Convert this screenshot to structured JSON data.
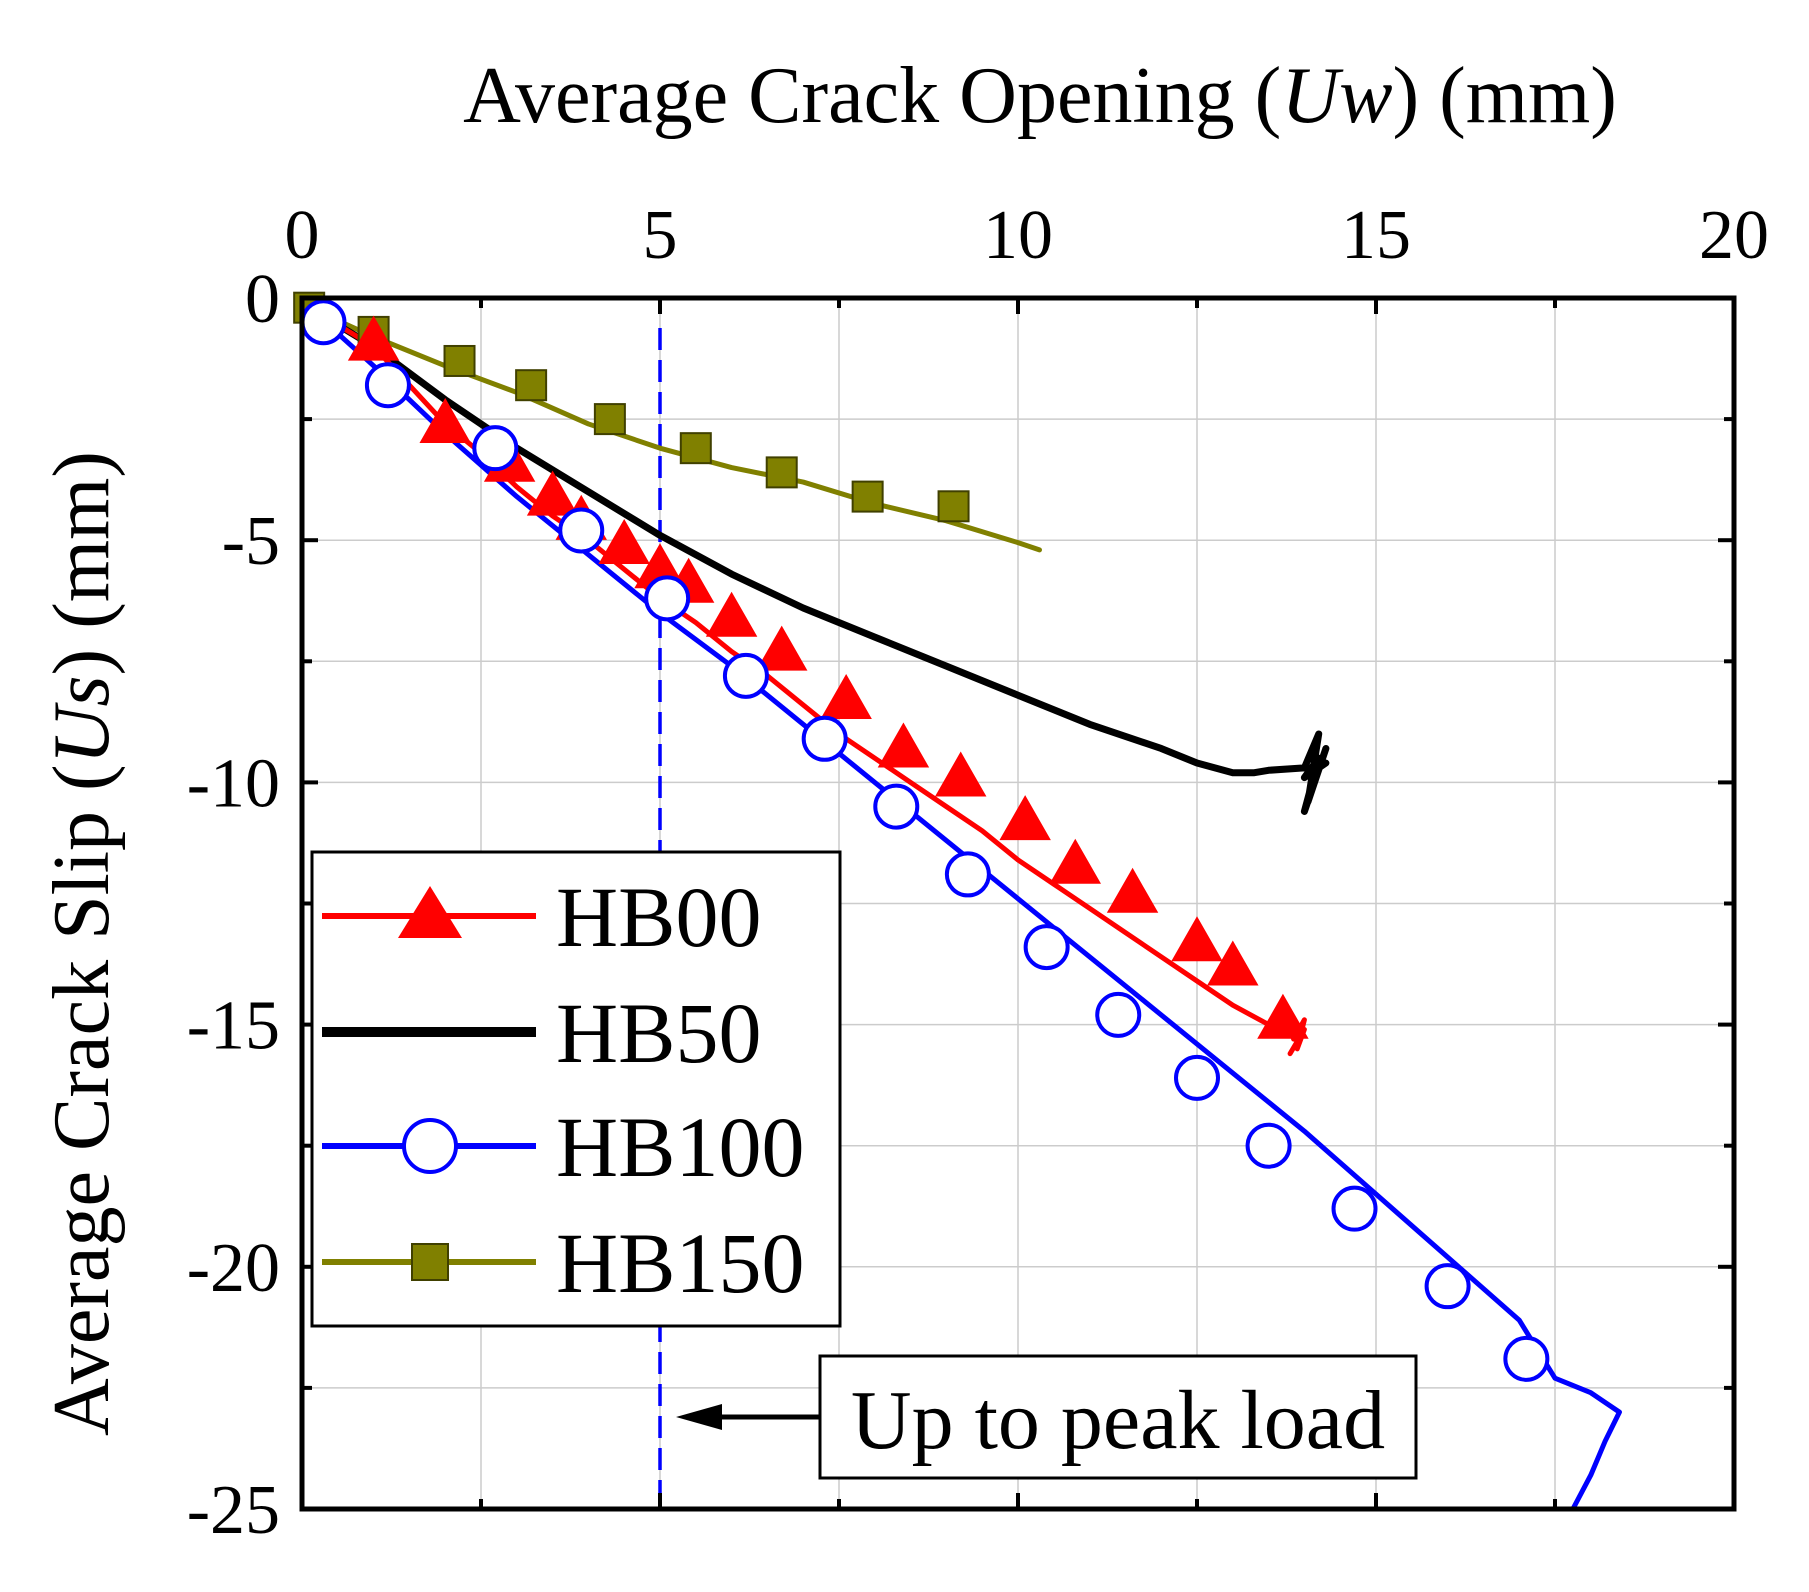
{
  "chart_data": {
    "type": "line",
    "xlabel": {
      "parts": [
        {
          "text": "Average Crack Opening (",
          "italic": false
        },
        {
          "text": "Uw",
          "italic": true
        },
        {
          "text": ") (mm)",
          "italic": false
        }
      ]
    },
    "ylabel": {
      "parts": [
        {
          "text": "Average Crack Slip (",
          "italic": false
        },
        {
          "text": "Us",
          "italic": true
        },
        {
          "text": ") (mm)",
          "italic": false
        }
      ]
    },
    "x_axis_position": "top",
    "xlim": [
      0,
      20
    ],
    "ylim": [
      -25,
      0
    ],
    "xticks": [
      0,
      5,
      10,
      15,
      20
    ],
    "xtick_labels": [
      "0",
      "5",
      "10",
      "15",
      "20"
    ],
    "yticks": [
      0,
      -5,
      -10,
      -15,
      -20,
      -25
    ],
    "ytick_labels": [
      "0",
      "-5",
      "-10",
      "-15",
      "-20",
      "-25"
    ],
    "grid": true,
    "legend_position": "bottom-left",
    "series": [
      {
        "name": "HB00",
        "color": "#ff0000",
        "marker": "triangle-filled",
        "line_width": 5,
        "x": [
          0.1,
          1.0,
          1.5,
          2.0,
          2.5,
          3.0,
          3.5,
          4.0,
          4.5,
          5.0,
          5.5,
          6.0,
          6.5,
          7.0,
          7.5,
          8.0,
          8.5,
          9.0,
          9.5,
          10.0,
          10.5,
          11.0,
          11.5,
          12.0,
          12.5,
          13.0,
          13.5,
          13.7,
          13.85,
          14.0,
          13.9,
          14.0,
          13.8
        ],
        "y": [
          -0.2,
          -1.0,
          -1.8,
          -2.6,
          -3.2,
          -3.9,
          -4.5,
          -5.0,
          -5.6,
          -6.2,
          -6.7,
          -7.3,
          -7.8,
          -8.4,
          -9.0,
          -9.5,
          -10.0,
          -10.5,
          -11.0,
          -11.6,
          -12.1,
          -12.6,
          -13.1,
          -13.6,
          -14.1,
          -14.6,
          -15.0,
          -14.7,
          -15.3,
          -14.9,
          -15.5,
          -15.1,
          -15.6
        ],
        "markers_x": [
          1.0,
          2.0,
          2.9,
          3.5,
          3.9,
          4.5,
          5.0,
          5.4,
          6.0,
          6.7,
          7.6,
          8.4,
          9.2,
          10.1,
          10.8,
          11.6,
          12.5,
          13.0,
          13.7
        ],
        "markers_y": [
          -0.9,
          -2.6,
          -3.4,
          -4.1,
          -4.6,
          -5.1,
          -5.6,
          -5.9,
          -6.6,
          -7.3,
          -8.3,
          -9.3,
          -9.9,
          -10.8,
          -11.7,
          -12.3,
          -13.3,
          -13.8,
          -14.9
        ]
      },
      {
        "name": "HB50",
        "color": "#000000",
        "marker": "none",
        "line_width": 7,
        "x": [
          0.1,
          1.0,
          2.0,
          3.0,
          4.0,
          5.0,
          6.0,
          7.0,
          8.0,
          9.0,
          10.0,
          11.0,
          12.0,
          12.5,
          13.0,
          13.3,
          13.5,
          14.0,
          14.2,
          14.05,
          14.3,
          14.0,
          14.2,
          14.0,
          14.3
        ],
        "y": [
          -0.2,
          -1.0,
          -2.1,
          -3.1,
          -4.0,
          -4.9,
          -5.7,
          -6.4,
          -7.0,
          -7.6,
          -8.2,
          -8.8,
          -9.3,
          -9.6,
          -9.8,
          -9.8,
          -9.75,
          -9.7,
          -9.0,
          -10.4,
          -9.3,
          -10.6,
          -9.5,
          -9.9,
          -9.6
        ]
      },
      {
        "name": "HB100",
        "color": "#0000ff",
        "marker": "circle-open",
        "line_width": 5,
        "x": [
          0.1,
          1.0,
          2.0,
          3.0,
          4.0,
          5.0,
          6.0,
          7.0,
          8.0,
          9.0,
          10.0,
          11.0,
          12.0,
          13.0,
          14.0,
          15.0,
          16.0,
          17.0,
          17.5,
          18.0,
          18.4,
          18.2,
          18.0,
          17.75
        ],
        "y": [
          -0.2,
          -1.4,
          -2.8,
          -4.1,
          -5.3,
          -6.5,
          -7.6,
          -8.8,
          -10.0,
          -11.2,
          -12.4,
          -13.6,
          -14.8,
          -16.0,
          -17.2,
          -18.5,
          -19.8,
          -21.1,
          -22.3,
          -22.6,
          -23.0,
          -23.6,
          -24.3,
          -25.0
        ],
        "markers_x": [
          0.3,
          1.2,
          2.7,
          3.9,
          5.1,
          6.2,
          7.3,
          8.3,
          9.3,
          10.4,
          11.4,
          12.5,
          13.5,
          14.7,
          16.0,
          17.1
        ],
        "markers_y": [
          -0.5,
          -1.8,
          -3.1,
          -4.8,
          -6.2,
          -7.8,
          -9.1,
          -10.5,
          -11.9,
          -13.4,
          -14.8,
          -16.1,
          -17.5,
          -18.8,
          -20.4,
          -21.9
        ]
      },
      {
        "name": "HB150",
        "color": "#808000",
        "marker": "square-filled",
        "line_width": 5,
        "x": [
          0.1,
          1.0,
          2.0,
          3.0,
          4.0,
          5.0,
          6.0,
          7.0,
          8.0,
          9.0,
          10.0,
          10.3
        ],
        "y": [
          -0.2,
          -0.8,
          -1.4,
          -1.95,
          -2.6,
          -3.1,
          -3.5,
          -3.8,
          -4.25,
          -4.6,
          -5.05,
          -5.2
        ],
        "markers_x": [
          0.1,
          1.0,
          2.2,
          3.2,
          4.3,
          5.5,
          6.7,
          7.9,
          9.1
        ],
        "markers_y": [
          -0.2,
          -0.7,
          -1.3,
          -1.8,
          -2.5,
          -3.1,
          -3.6,
          -4.1,
          -4.3
        ]
      }
    ],
    "reference_line": {
      "x": 5,
      "color": "#0000ff",
      "style": "dashed"
    },
    "annotation": {
      "text": "Up to peak load",
      "arrow_points_to_x": 5,
      "y": -23.1
    }
  }
}
